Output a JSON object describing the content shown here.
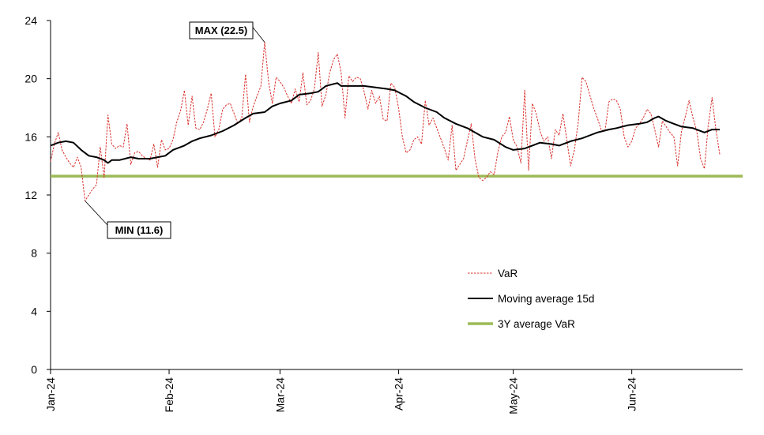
{
  "chart_data": {
    "type": "line",
    "title": "",
    "xlabel": "",
    "ylabel": "",
    "ylim": [
      0,
      24
    ],
    "yticks": [
      "0",
      "4",
      "8",
      "12",
      "16",
      "20",
      "24"
    ],
    "xlim": [
      "2024-01-01",
      "2024-06-30"
    ],
    "x_tick_labels": [
      {
        "label": "Jan-24",
        "date": "2024-01-01"
      },
      {
        "label": "Feb-24",
        "date": "2024-02-01"
      },
      {
        "label": "Mar-24",
        "date": "2024-03-01"
      },
      {
        "label": "Apr-24",
        "date": "2024-04-01"
      },
      {
        "label": "May-24",
        "date": "2024-05-01"
      },
      {
        "label": "Jun-24",
        "date": "2024-06-01"
      }
    ],
    "grid": false,
    "legend_position": "center-right",
    "annotations": [
      {
        "text": "MAX (22.5)",
        "x": "2024-02-26",
        "y": 22.5
      },
      {
        "text": "MIN (11.6)",
        "x": "2024-01-10",
        "y": 11.6
      }
    ],
    "series": [
      {
        "name": "VaR",
        "style": "dashed",
        "color": "#d9302c",
        "points": [
          [
            "2024-01-01",
            14.3
          ],
          [
            "2024-01-02",
            15.5
          ],
          [
            "2024-01-03",
            16.3
          ],
          [
            "2024-01-04",
            15.1
          ],
          [
            "2024-01-05",
            14.6
          ],
          [
            "2024-01-06",
            14.2
          ],
          [
            "2024-01-07",
            13.9
          ],
          [
            "2024-01-08",
            14.6
          ],
          [
            "2024-01-09",
            13.9
          ],
          [
            "2024-01-10",
            11.6
          ],
          [
            "2024-01-11",
            12.0
          ],
          [
            "2024-01-12",
            12.4
          ],
          [
            "2024-01-13",
            12.7
          ],
          [
            "2024-01-14",
            15.3
          ],
          [
            "2024-01-15",
            13.2
          ],
          [
            "2024-01-16",
            17.5
          ],
          [
            "2024-01-17",
            15.5
          ],
          [
            "2024-01-18",
            15.2
          ],
          [
            "2024-01-19",
            15.4
          ],
          [
            "2024-01-20",
            15.3
          ],
          [
            "2024-01-21",
            16.9
          ],
          [
            "2024-01-22",
            14.1
          ],
          [
            "2024-01-23",
            14.9
          ],
          [
            "2024-01-24",
            15.0
          ],
          [
            "2024-01-25",
            14.7
          ],
          [
            "2024-01-26",
            14.5
          ],
          [
            "2024-01-27",
            14.4
          ],
          [
            "2024-01-28",
            15.5
          ],
          [
            "2024-01-29",
            13.9
          ],
          [
            "2024-01-30",
            15.8
          ],
          [
            "2024-01-31",
            15.1
          ],
          [
            "2024-02-01",
            15.2
          ],
          [
            "2024-02-02",
            15.8
          ],
          [
            "2024-02-03",
            17.0
          ],
          [
            "2024-02-04",
            17.8
          ],
          [
            "2024-02-05",
            19.2
          ],
          [
            "2024-02-06",
            16.8
          ],
          [
            "2024-02-07",
            18.8
          ],
          [
            "2024-02-08",
            16.6
          ],
          [
            "2024-02-09",
            16.5
          ],
          [
            "2024-02-10",
            17.0
          ],
          [
            "2024-02-11",
            17.9
          ],
          [
            "2024-02-12",
            19.0
          ],
          [
            "2024-02-13",
            16.0
          ],
          [
            "2024-02-14",
            16.5
          ],
          [
            "2024-02-15",
            17.9
          ],
          [
            "2024-02-16",
            18.2
          ],
          [
            "2024-02-17",
            18.3
          ],
          [
            "2024-02-18",
            17.6
          ],
          [
            "2024-02-19",
            16.9
          ],
          [
            "2024-02-20",
            17.3
          ],
          [
            "2024-02-21",
            20.3
          ],
          [
            "2024-02-22",
            17.0
          ],
          [
            "2024-02-23",
            18.1
          ],
          [
            "2024-02-24",
            18.8
          ],
          [
            "2024-02-25",
            19.5
          ],
          [
            "2024-02-26",
            22.5
          ],
          [
            "2024-02-27",
            19.8
          ],
          [
            "2024-02-28",
            18.3
          ],
          [
            "2024-02-29",
            20.1
          ],
          [
            "2024-03-01",
            19.8
          ],
          [
            "2024-03-02",
            19.4
          ],
          [
            "2024-03-03",
            18.8
          ],
          [
            "2024-03-04",
            18.3
          ],
          [
            "2024-03-05",
            19.3
          ],
          [
            "2024-03-06",
            18.4
          ],
          [
            "2024-03-07",
            20.4
          ],
          [
            "2024-03-08",
            18.2
          ],
          [
            "2024-03-09",
            18.5
          ],
          [
            "2024-03-10",
            19.3
          ],
          [
            "2024-03-11",
            21.8
          ],
          [
            "2024-03-12",
            18.1
          ],
          [
            "2024-03-13",
            18.9
          ],
          [
            "2024-03-14",
            20.4
          ],
          [
            "2024-03-15",
            21.3
          ],
          [
            "2024-03-16",
            21.7
          ],
          [
            "2024-03-17",
            20.4
          ],
          [
            "2024-03-18",
            17.3
          ],
          [
            "2024-03-19",
            20.2
          ],
          [
            "2024-03-20",
            19.8
          ],
          [
            "2024-03-21",
            20.1
          ],
          [
            "2024-03-22",
            20.0
          ],
          [
            "2024-03-23",
            19.1
          ],
          [
            "2024-03-24",
            17.9
          ],
          [
            "2024-03-25",
            19.2
          ],
          [
            "2024-03-26",
            18.3
          ],
          [
            "2024-03-27",
            18.8
          ],
          [
            "2024-03-28",
            17.2
          ],
          [
            "2024-03-29",
            17.1
          ],
          [
            "2024-03-30",
            19.7
          ],
          [
            "2024-03-31",
            19.4
          ],
          [
            "2024-04-01",
            18.0
          ],
          [
            "2024-04-02",
            16.0
          ],
          [
            "2024-04-03",
            14.9
          ],
          [
            "2024-04-04",
            15.1
          ],
          [
            "2024-04-05",
            15.8
          ],
          [
            "2024-04-06",
            16.0
          ],
          [
            "2024-04-07",
            15.5
          ],
          [
            "2024-04-08",
            18.5
          ],
          [
            "2024-04-09",
            16.8
          ],
          [
            "2024-04-10",
            17.3
          ],
          [
            "2024-04-11",
            16.6
          ],
          [
            "2024-04-12",
            15.9
          ],
          [
            "2024-04-13",
            15.2
          ],
          [
            "2024-04-14",
            14.4
          ],
          [
            "2024-04-15",
            16.8
          ],
          [
            "2024-04-16",
            13.7
          ],
          [
            "2024-04-17",
            14.1
          ],
          [
            "2024-04-18",
            14.5
          ],
          [
            "2024-04-19",
            15.7
          ],
          [
            "2024-04-20",
            16.9
          ],
          [
            "2024-04-21",
            14.5
          ],
          [
            "2024-04-22",
            13.2
          ],
          [
            "2024-04-23",
            13.0
          ],
          [
            "2024-04-24",
            13.2
          ],
          [
            "2024-04-25",
            13.6
          ],
          [
            "2024-04-26",
            13.4
          ],
          [
            "2024-04-27",
            15.0
          ],
          [
            "2024-04-28",
            16.0
          ],
          [
            "2024-04-29",
            16.3
          ],
          [
            "2024-04-30",
            17.4
          ],
          [
            "2024-05-01",
            15.8
          ],
          [
            "2024-05-02",
            15.3
          ],
          [
            "2024-05-03",
            14.2
          ],
          [
            "2024-05-04",
            19.2
          ],
          [
            "2024-05-05",
            13.7
          ],
          [
            "2024-05-06",
            18.3
          ],
          [
            "2024-05-07",
            17.6
          ],
          [
            "2024-05-08",
            16.4
          ],
          [
            "2024-05-09",
            15.7
          ],
          [
            "2024-05-10",
            16.0
          ],
          [
            "2024-05-11",
            14.5
          ],
          [
            "2024-05-12",
            16.5
          ],
          [
            "2024-05-13",
            16.1
          ],
          [
            "2024-05-14",
            17.6
          ],
          [
            "2024-05-15",
            15.8
          ],
          [
            "2024-05-16",
            14.0
          ],
          [
            "2024-05-17",
            15.1
          ],
          [
            "2024-05-18",
            17.0
          ],
          [
            "2024-05-19",
            20.1
          ],
          [
            "2024-05-20",
            19.8
          ],
          [
            "2024-05-21",
            18.9
          ],
          [
            "2024-05-22",
            18.0
          ],
          [
            "2024-05-23",
            17.3
          ],
          [
            "2024-05-24",
            16.5
          ],
          [
            "2024-05-25",
            16.4
          ],
          [
            "2024-05-26",
            18.4
          ],
          [
            "2024-05-27",
            18.6
          ],
          [
            "2024-05-28",
            18.5
          ],
          [
            "2024-05-29",
            17.9
          ],
          [
            "2024-05-30",
            16.0
          ],
          [
            "2024-05-31",
            15.3
          ],
          [
            "2024-06-01",
            15.7
          ],
          [
            "2024-06-02",
            16.6
          ],
          [
            "2024-06-03",
            16.9
          ],
          [
            "2024-06-04",
            17.3
          ],
          [
            "2024-06-05",
            17.9
          ],
          [
            "2024-06-06",
            17.6
          ],
          [
            "2024-06-07",
            16.5
          ],
          [
            "2024-06-08",
            15.3
          ],
          [
            "2024-06-09",
            17.1
          ],
          [
            "2024-06-10",
            16.7
          ],
          [
            "2024-06-11",
            16.3
          ],
          [
            "2024-06-12",
            16.0
          ],
          [
            "2024-06-13",
            14.0
          ],
          [
            "2024-06-14",
            16.4
          ],
          [
            "2024-06-15",
            17.4
          ],
          [
            "2024-06-16",
            18.5
          ],
          [
            "2024-06-17",
            17.3
          ],
          [
            "2024-06-18",
            16.4
          ],
          [
            "2024-06-19",
            14.5
          ],
          [
            "2024-06-20",
            13.8
          ],
          [
            "2024-06-21",
            16.8
          ],
          [
            "2024-06-22",
            18.7
          ],
          [
            "2024-06-23",
            16.5
          ],
          [
            "2024-06-24",
            14.8
          ]
        ]
      },
      {
        "name": "Moving average 15d",
        "style": "solid",
        "color": "#000000",
        "points": [
          [
            "2024-01-01",
            15.4
          ],
          [
            "2024-01-03",
            15.6
          ],
          [
            "2024-01-05",
            15.7
          ],
          [
            "2024-01-07",
            15.6
          ],
          [
            "2024-01-09",
            15.1
          ],
          [
            "2024-01-11",
            14.7
          ],
          [
            "2024-01-13",
            14.6
          ],
          [
            "2024-01-15",
            14.4
          ],
          [
            "2024-01-16",
            14.2
          ],
          [
            "2024-01-17",
            14.4
          ],
          [
            "2024-01-19",
            14.4
          ],
          [
            "2024-01-22",
            14.6
          ],
          [
            "2024-01-24",
            14.5
          ],
          [
            "2024-01-27",
            14.5
          ],
          [
            "2024-01-29",
            14.6
          ],
          [
            "2024-01-31",
            14.7
          ],
          [
            "2024-02-02",
            15.1
          ],
          [
            "2024-02-05",
            15.4
          ],
          [
            "2024-02-07",
            15.7
          ],
          [
            "2024-02-09",
            15.9
          ],
          [
            "2024-02-12",
            16.1
          ],
          [
            "2024-02-15",
            16.4
          ],
          [
            "2024-02-18",
            16.8
          ],
          [
            "2024-02-21",
            17.3
          ],
          [
            "2024-02-23",
            17.6
          ],
          [
            "2024-02-26",
            17.7
          ],
          [
            "2024-02-28",
            18.1
          ],
          [
            "2024-03-01",
            18.3
          ],
          [
            "2024-03-04",
            18.5
          ],
          [
            "2024-03-06",
            18.9
          ],
          [
            "2024-03-09",
            19.0
          ],
          [
            "2024-03-11",
            19.1
          ],
          [
            "2024-03-13",
            19.5
          ],
          [
            "2024-03-16",
            19.7
          ],
          [
            "2024-03-17",
            19.5
          ],
          [
            "2024-03-20",
            19.5
          ],
          [
            "2024-03-23",
            19.5
          ],
          [
            "2024-03-26",
            19.4
          ],
          [
            "2024-03-29",
            19.3
          ],
          [
            "2024-03-31",
            19.2
          ],
          [
            "2024-04-03",
            18.8
          ],
          [
            "2024-04-05",
            18.4
          ],
          [
            "2024-04-08",
            18.0
          ],
          [
            "2024-04-11",
            17.7
          ],
          [
            "2024-04-13",
            17.3
          ],
          [
            "2024-04-16",
            16.9
          ],
          [
            "2024-04-19",
            16.6
          ],
          [
            "2024-04-21",
            16.3
          ],
          [
            "2024-04-23",
            16.0
          ],
          [
            "2024-04-26",
            15.8
          ],
          [
            "2024-04-29",
            15.3
          ],
          [
            "2024-05-01",
            15.1
          ],
          [
            "2024-05-04",
            15.2
          ],
          [
            "2024-05-06",
            15.4
          ],
          [
            "2024-05-08",
            15.6
          ],
          [
            "2024-05-11",
            15.5
          ],
          [
            "2024-05-13",
            15.4
          ],
          [
            "2024-05-16",
            15.7
          ],
          [
            "2024-05-19",
            15.9
          ],
          [
            "2024-05-21",
            16.1
          ],
          [
            "2024-05-23",
            16.3
          ],
          [
            "2024-05-26",
            16.5
          ],
          [
            "2024-05-28",
            16.6
          ],
          [
            "2024-05-31",
            16.8
          ],
          [
            "2024-06-03",
            16.9
          ],
          [
            "2024-06-05",
            17.0
          ],
          [
            "2024-06-07",
            17.3
          ],
          [
            "2024-06-08",
            17.4
          ],
          [
            "2024-06-10",
            17.1
          ],
          [
            "2024-06-12",
            16.9
          ],
          [
            "2024-06-14",
            16.7
          ],
          [
            "2024-06-17",
            16.6
          ],
          [
            "2024-06-20",
            16.3
          ],
          [
            "2024-06-22",
            16.5
          ],
          [
            "2024-06-24",
            16.5
          ]
        ]
      },
      {
        "name": "3Y average VaR",
        "style": "solid-thick",
        "color": "#9cba57",
        "points": [
          [
            "2024-01-01",
            13.3
          ],
          [
            "2024-06-30",
            13.3
          ]
        ]
      }
    ]
  }
}
